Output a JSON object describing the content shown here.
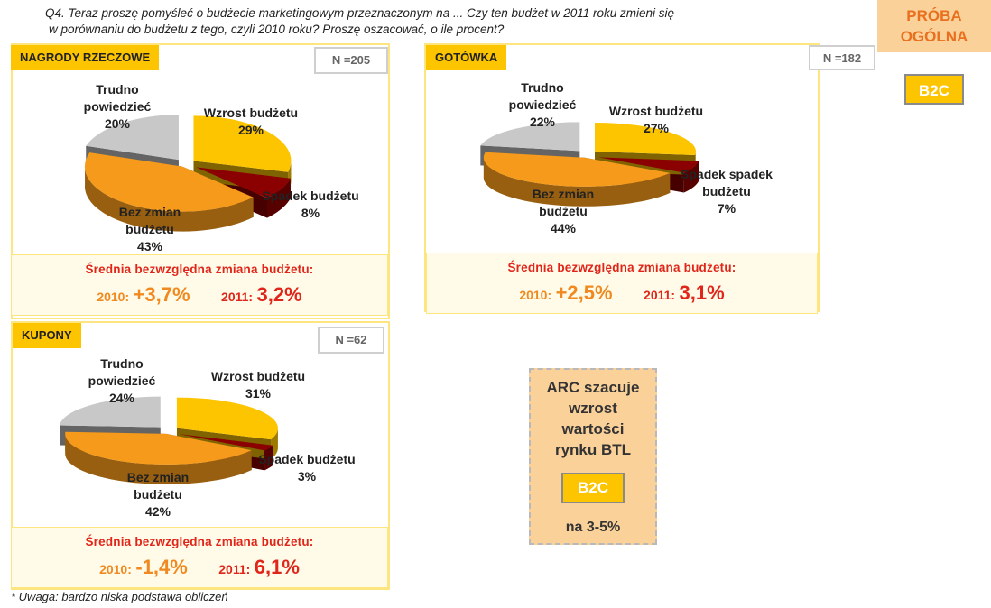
{
  "question": {
    "line1": "Q4. Teraz proszę pomyśleć o budżecie marketingowym przeznaczonym na ... Czy ten budżet w 2011 roku zmieni się",
    "line2": "w porównaniu do  budżetu z tego, czyli 2010 roku? Proszę oszacować, o ile procent?"
  },
  "proba": {
    "line1": "PRÓBA",
    "line2": "OGÓLNA"
  },
  "b2c_label": "B2C",
  "colors": {
    "wzrost": "#fdc500",
    "spadek": "#8b0000",
    "bez_zmian": "#f59a1a",
    "trudno": "#c8c8c8",
    "title_bg": "#fdc500",
    "red": "#e0261a",
    "orange": "#f08a20"
  },
  "chart_data": [
    {
      "type": "pie",
      "title": "NAGRODY RZECZOWE",
      "n": "N =205",
      "slices": [
        {
          "label": "Wzrost budżetu",
          "value": 29,
          "display": "29%"
        },
        {
          "label": "Spadek budżetu",
          "value": 8,
          "display": "8%"
        },
        {
          "label": "Bez zmian budżetu",
          "value": 43,
          "display": "43%"
        },
        {
          "label": "Trudno powiedzieć",
          "value": 20,
          "display": "20%"
        }
      ],
      "labels": {
        "wzrost": [
          "Wzrost budżetu",
          "29%"
        ],
        "spadek": [
          "Spadek budżetu",
          "8%"
        ],
        "bez_zmian": [
          "Bez zmian",
          "budżetu",
          "43%"
        ],
        "trudno": [
          "Trudno",
          "powiedzieć",
          "20%"
        ]
      },
      "avg_title": "Średnia bezwzględna zmiana budżetu:",
      "y2010_label": "2010:",
      "y2010_value": "+3,7%",
      "y2011_label": "2011:",
      "y2011_value": "3,2%"
    },
    {
      "type": "pie",
      "title": "GOTÓWKA",
      "n": "N =182",
      "slices": [
        {
          "label": "Wzrost budżetu",
          "value": 27,
          "display": "27%"
        },
        {
          "label": "Spadek spadek budżetu",
          "value": 7,
          "display": "7%"
        },
        {
          "label": "Bez zmian budżetu",
          "value": 44,
          "display": "44%"
        },
        {
          "label": "Trudno powiedzieć",
          "value": 22,
          "display": "22%"
        }
      ],
      "labels": {
        "wzrost": [
          "Wzrost budżetu",
          "27%"
        ],
        "spadek": [
          "Spadek spadek",
          "budżetu",
          "7%"
        ],
        "bez_zmian": [
          "Bez zmian",
          "budżetu",
          "44%"
        ],
        "trudno": [
          "Trudno",
          "powiedzieć",
          "22%"
        ]
      },
      "avg_title": "Średnia bezwzględna zmiana budżetu:",
      "y2010_label": "2010:",
      "y2010_value": "+2,5%",
      "y2011_label": "2011:",
      "y2011_value": "3,1%"
    },
    {
      "type": "pie",
      "title": "KUPONY",
      "n": "N =62",
      "slices": [
        {
          "label": "Wzrost budżetu",
          "value": 31,
          "display": "31%"
        },
        {
          "label": "Spadek budżetu",
          "value": 3,
          "display": "3%"
        },
        {
          "label": "Bez zmian budżetu",
          "value": 42,
          "display": "42%"
        },
        {
          "label": "Trudno powiedzieć",
          "value": 24,
          "display": "24%"
        }
      ],
      "labels": {
        "wzrost": [
          "Wzrost budżetu",
          "31%"
        ],
        "spadek": [
          "Spadek budżetu",
          "3%"
        ],
        "bez_zmian": [
          "Bez zmian",
          "budżetu",
          "42%"
        ],
        "trudno": [
          "Trudno",
          "powiedzieć",
          "24%"
        ]
      },
      "avg_title": "Średnia bezwzględna zmiana budżetu:",
      "y2010_label": "2010:",
      "y2010_value": "-1,4%",
      "y2011_label": "2011:",
      "y2011_value": "6,1%"
    }
  ],
  "arc_box": {
    "line1": "ARC szacuje",
    "line2": "wzrost",
    "line3": "wartości",
    "line4": "rynku BTL",
    "badge": "B2C",
    "bottom": "na 3-5%"
  },
  "footnote": "* Uwaga: bardzo niska podstawa obliczeń"
}
